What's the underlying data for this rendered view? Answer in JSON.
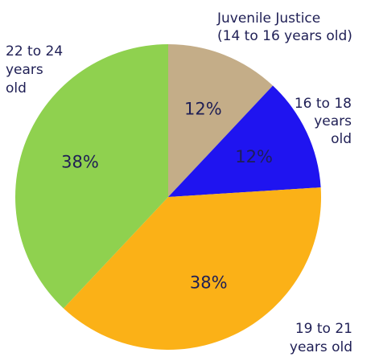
{
  "chart_data": {
    "type": "pie",
    "slices": [
      {
        "label": [
          "Juvenile Justice",
          "(14 to 16 years old)"
        ],
        "value": 12,
        "value_label": "12%",
        "color": "#c4ad88"
      },
      {
        "label": [
          "16 to 18",
          "years",
          "old"
        ],
        "value": 12,
        "value_label": "12%",
        "color": "#1f14f0"
      },
      {
        "label": [
          "19 to 21",
          "years old"
        ],
        "value": 38,
        "value_label": "38%",
        "color": "#fbb117"
      },
      {
        "label": [
          "22 to 24",
          "years",
          "old"
        ],
        "value": 38,
        "value_label": "38%",
        "color": "#8fd14f"
      }
    ],
    "start": "12 o'clock",
    "direction": "clockwise",
    "legend": "none"
  }
}
